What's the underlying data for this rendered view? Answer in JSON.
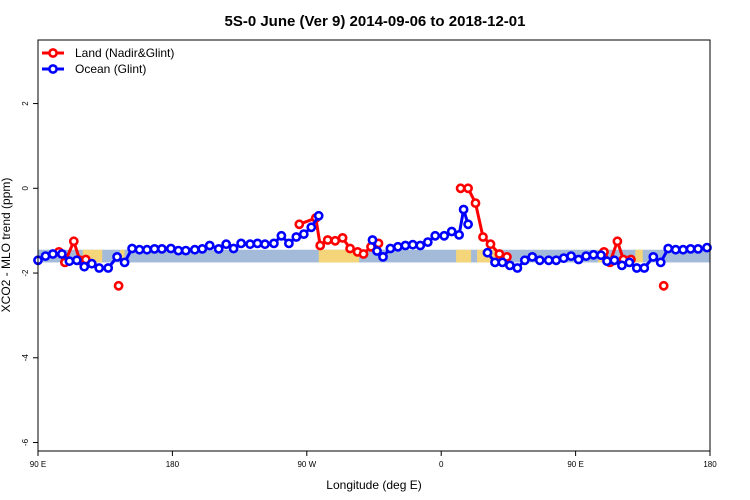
{
  "chart_data": {
    "type": "line",
    "title": "5S-0 June (Ver 9)   2014-09-06 to 2018-12-01",
    "xlabel": "Longitude (deg E)",
    "ylabel": "XCO2 - MLO trend (ppm)",
    "xlim": [
      90,
      540
    ],
    "ylim": [
      -6.2,
      3.5
    ],
    "x_ticks": [
      {
        "value": 90,
        "label": "90 E"
      },
      {
        "value": 180,
        "label": "180"
      },
      {
        "value": 270,
        "label": "90 W"
      },
      {
        "value": 360,
        "label": "0"
      },
      {
        "value": 450,
        "label": "90 E"
      },
      {
        "value": 540,
        "label": "180"
      }
    ],
    "y_ticks": [
      {
        "value": -6,
        "label": "-6"
      },
      {
        "value": -4,
        "label": "-4"
      },
      {
        "value": -2,
        "label": "-2"
      },
      {
        "value": 0,
        "label": "0"
      },
      {
        "value": 2,
        "label": "2"
      }
    ],
    "colors": {
      "land": "#ff0000",
      "ocean": "#0000ff",
      "band_ocean": "#a3bad9",
      "band_land": "#f5d57a"
    },
    "band": {
      "y_range": [
        -1.75,
        -1.45
      ],
      "land_segments": [
        [
          120,
          133
        ],
        [
          145,
          148
        ],
        [
          278,
          305
        ],
        [
          370,
          380
        ],
        [
          384,
          401
        ],
        [
          465,
          470
        ],
        [
          490,
          495
        ]
      ]
    },
    "series": [
      {
        "name": "Land (Nadir&Glint)",
        "color": "#ff0000",
        "segments": [
          [
            [
              104,
              -1.5
            ],
            [
              108,
              -1.75
            ],
            [
              114,
              -1.25
            ],
            [
              118,
              -1.7
            ],
            [
              122,
              -1.68
            ]
          ],
          [
            [
              144,
              -2.3
            ]
          ],
          [
            [
              265,
              -0.85
            ],
            [
              276,
              -0.7
            ],
            [
              279,
              -1.35
            ],
            [
              284,
              -1.22
            ],
            [
              289,
              -1.24
            ],
            [
              294,
              -1.17
            ],
            [
              299,
              -1.42
            ],
            [
              304,
              -1.5
            ],
            [
              308,
              -1.55
            ],
            [
              313,
              -1.38
            ],
            [
              318,
              -1.3
            ]
          ],
          [
            [
              373,
              -0.0
            ],
            [
              378,
              0.0
            ],
            [
              383,
              -0.35
            ],
            [
              388,
              -1.15
            ],
            [
              393,
              -1.32
            ],
            [
              399,
              -1.55
            ],
            [
              404,
              -1.62
            ]
          ],
          [
            [
              469,
              -1.5
            ],
            [
              473,
              -1.75
            ],
            [
              478,
              -1.25
            ],
            [
              482,
              -1.68
            ],
            [
              487,
              -1.68
            ]
          ],
          [
            [
              509,
              -2.3
            ]
          ]
        ]
      },
      {
        "name": "Ocean (Glint)",
        "color": "#0000ff",
        "segments": [
          [
            [
              90,
              -1.7
            ],
            [
              95,
              -1.6
            ],
            [
              100,
              -1.55
            ],
            [
              106,
              -1.55
            ],
            [
              111,
              -1.72
            ],
            [
              116,
              -1.7
            ],
            [
              121,
              -1.85
            ],
            [
              126,
              -1.78
            ],
            [
              131,
              -1.88
            ],
            [
              137,
              -1.88
            ],
            [
              143,
              -1.62
            ],
            [
              148,
              -1.75
            ],
            [
              153,
              -1.42
            ],
            [
              158,
              -1.45
            ],
            [
              163,
              -1.45
            ],
            [
              168,
              -1.43
            ],
            [
              173,
              -1.43
            ],
            [
              179,
              -1.42
            ],
            [
              184,
              -1.47
            ],
            [
              189,
              -1.47
            ],
            [
              195,
              -1.45
            ],
            [
              200,
              -1.43
            ],
            [
              205,
              -1.35
            ],
            [
              211,
              -1.43
            ],
            [
              216,
              -1.32
            ],
            [
              221,
              -1.42
            ],
            [
              226,
              -1.3
            ],
            [
              232,
              -1.32
            ],
            [
              237,
              -1.3
            ],
            [
              242,
              -1.32
            ],
            [
              248,
              -1.3
            ],
            [
              253,
              -1.12
            ],
            [
              258,
              -1.3
            ],
            [
              263,
              -1.15
            ],
            [
              268,
              -1.08
            ],
            [
              273,
              -0.92
            ],
            [
              278,
              -0.65
            ]
          ],
          [
            [
              314,
              -1.22
            ],
            [
              317,
              -1.48
            ],
            [
              321,
              -1.62
            ],
            [
              326,
              -1.42
            ],
            [
              331,
              -1.38
            ],
            [
              336,
              -1.35
            ],
            [
              341,
              -1.33
            ],
            [
              346,
              -1.35
            ],
            [
              351,
              -1.27
            ],
            [
              356,
              -1.12
            ],
            [
              362,
              -1.12
            ],
            [
              367,
              -1.02
            ],
            [
              372,
              -1.1
            ],
            [
              375,
              -0.5
            ],
            [
              378,
              -0.85
            ]
          ],
          [
            [
              391,
              -1.52
            ],
            [
              396,
              -1.75
            ],
            [
              401,
              -1.75
            ],
            [
              406,
              -1.82
            ],
            [
              411,
              -1.88
            ],
            [
              416,
              -1.7
            ],
            [
              421,
              -1.62
            ],
            [
              426,
              -1.7
            ],
            [
              432,
              -1.7
            ],
            [
              437,
              -1.7
            ],
            [
              442,
              -1.65
            ],
            [
              447,
              -1.6
            ],
            [
              452,
              -1.68
            ],
            [
              457,
              -1.6
            ],
            [
              462,
              -1.57
            ],
            [
              467,
              -1.58
            ],
            [
              471,
              -1.72
            ],
            [
              476,
              -1.7
            ],
            [
              481,
              -1.82
            ],
            [
              486,
              -1.75
            ],
            [
              491,
              -1.88
            ],
            [
              496,
              -1.88
            ],
            [
              502,
              -1.62
            ],
            [
              507,
              -1.75
            ],
            [
              512,
              -1.42
            ],
            [
              517,
              -1.45
            ],
            [
              522,
              -1.45
            ],
            [
              527,
              -1.43
            ],
            [
              532,
              -1.43
            ],
            [
              538,
              -1.4
            ]
          ]
        ]
      }
    ],
    "legend": {
      "position": "top-left",
      "entries": [
        "Land (Nadir&Glint)",
        "Ocean (Glint)"
      ]
    }
  }
}
